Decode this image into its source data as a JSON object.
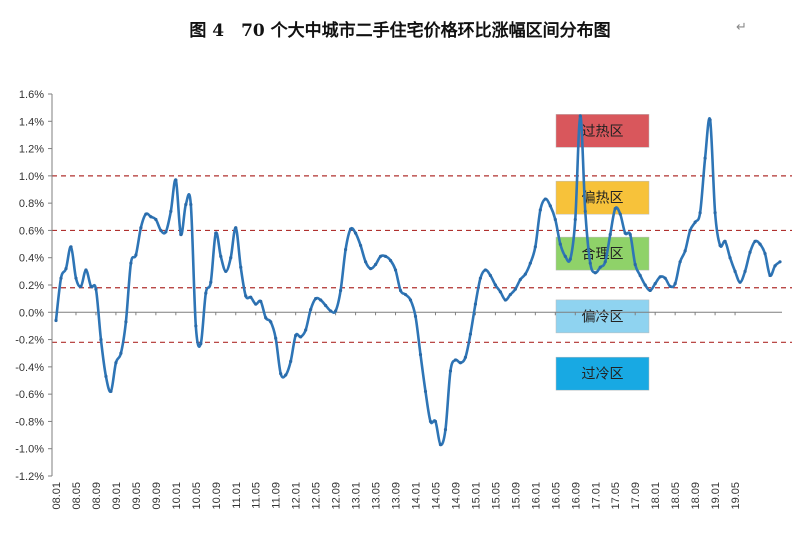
{
  "title": "图 4　70 个大中城市二手住宅价格环比涨幅区间分布图",
  "para_mark": "↵",
  "chart_data": {
    "type": "line",
    "title": "图 4　70 个大中城市二手住宅价格环比涨幅区间分布图",
    "xlabel": "",
    "ylabel": "",
    "ylim": [
      -1.2,
      1.6
    ],
    "y_ticks": [
      "-1.2%",
      "-1.0%",
      "-0.8%",
      "-0.6%",
      "-0.4%",
      "-0.2%",
      "0.0%",
      "0.2%",
      "0.4%",
      "0.6%",
      "0.8%",
      "1.0%",
      "1.2%",
      "1.4%",
      "1.6%"
    ],
    "x_ticks": [
      "08.01",
      "08.05",
      "08.09",
      "09.01",
      "09.05",
      "09.09",
      "10.01",
      "10.05",
      "10.09",
      "11.01",
      "11.05",
      "11.09",
      "12.01",
      "12.05",
      "12.09",
      "13.01",
      "13.05",
      "13.09",
      "14.01",
      "14.05",
      "14.09",
      "15.01",
      "15.05",
      "15.09",
      "16.01",
      "16.05",
      "16.09",
      "17.01",
      "17.05",
      "17.09",
      "18.01",
      "18.05",
      "18.09",
      "19.01",
      "19.05"
    ],
    "reference_lines": [
      1.0,
      0.6,
      0.18,
      -0.22
    ],
    "zero_line": 0.0,
    "zones": [
      {
        "label": "过热区",
        "color": "#d9575c"
      },
      {
        "label": "偏热区",
        "color": "#f7c23a"
      },
      {
        "label": "合理区",
        "color": "#8fd269"
      },
      {
        "label": "偏冷区",
        "color": "#8fd3f0"
      },
      {
        "label": "过冷区",
        "color": "#18a9e3"
      }
    ],
    "series": [
      {
        "line_color": "#2e75b6",
        "start_month": "08.01",
        "values": [
          -0.06,
          0.25,
          0.32,
          0.48,
          0.25,
          0.19,
          0.31,
          0.19,
          0.17,
          -0.2,
          -0.47,
          -0.58,
          -0.37,
          -0.3,
          -0.07,
          0.36,
          0.42,
          0.62,
          0.72,
          0.7,
          0.68,
          0.6,
          0.59,
          0.74,
          0.97,
          0.57,
          0.79,
          0.79,
          -0.1,
          -0.23,
          0.14,
          0.22,
          0.58,
          0.41,
          0.3,
          0.4,
          0.62,
          0.33,
          0.12,
          0.11,
          0.06,
          0.08,
          -0.04,
          -0.07,
          -0.19,
          -0.45,
          -0.46,
          -0.36,
          -0.17,
          -0.18,
          -0.13,
          0.02,
          0.1,
          0.09,
          0.05,
          0.01,
          0.01,
          0.16,
          0.46,
          0.61,
          0.58,
          0.49,
          0.37,
          0.32,
          0.35,
          0.41,
          0.41,
          0.38,
          0.31,
          0.16,
          0.13,
          0.09,
          -0.03,
          -0.31,
          -0.58,
          -0.8,
          -0.8,
          -0.97,
          -0.86,
          -0.43,
          -0.35,
          -0.37,
          -0.33,
          -0.16,
          0.06,
          0.25,
          0.31,
          0.27,
          0.2,
          0.15,
          0.09,
          0.13,
          0.17,
          0.24,
          0.28,
          0.36,
          0.48,
          0.75,
          0.83,
          0.78,
          0.68,
          0.5,
          0.41,
          0.39,
          0.68,
          1.44,
          0.74,
          0.36,
          0.29,
          0.33,
          0.37,
          0.57,
          0.76,
          0.72,
          0.58,
          0.57,
          0.35,
          0.27,
          0.2,
          0.16,
          0.21,
          0.26,
          0.25,
          0.19,
          0.21,
          0.37,
          0.45,
          0.6,
          0.66,
          0.73,
          1.13,
          1.41,
          0.73,
          0.49,
          0.52,
          0.4,
          0.3,
          0.22,
          0.3,
          0.44,
          0.52,
          0.5,
          0.43,
          0.27,
          0.34,
          0.37
        ]
      }
    ],
    "grid": false,
    "legend": "none"
  }
}
